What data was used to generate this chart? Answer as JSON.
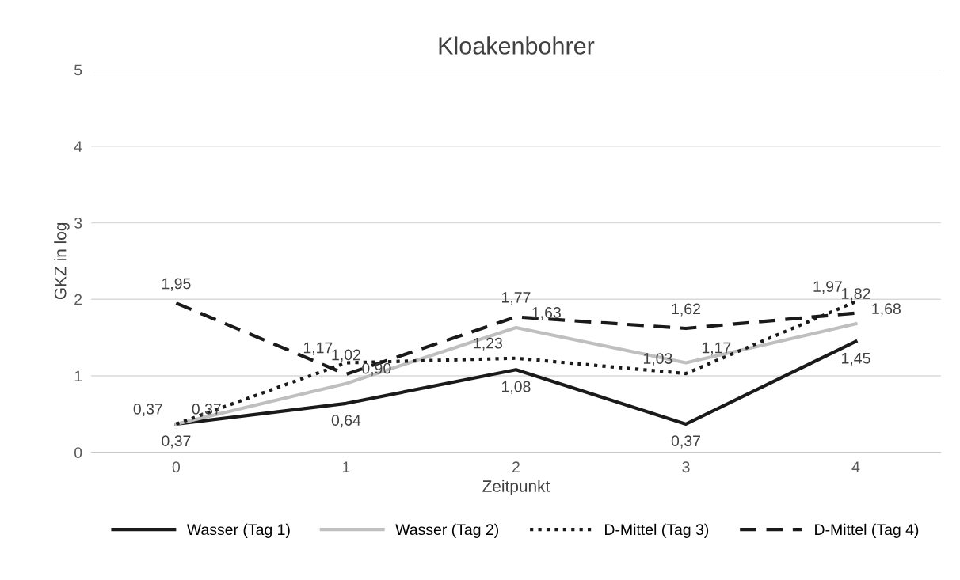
{
  "chart_data": {
    "type": "line",
    "title": "Kloakenbohrer",
    "xlabel": "Zeitpunkt",
    "ylabel": "GKZ in log",
    "categories": [
      "0",
      "1",
      "2",
      "3",
      "4"
    ],
    "series": [
      {
        "name": "Wasser (Tag 1)",
        "color": "#1a1a1a",
        "line_style": "solid",
        "values": [
          0.37,
          0.64,
          1.08,
          0.37,
          1.45
        ],
        "value_labels": [
          "0,37",
          "0,64",
          "1,08",
          "0,37",
          "1,45"
        ]
      },
      {
        "name": "Wasser (Tag 2)",
        "color": "#bfbfbf",
        "line_style": "solid",
        "values": [
          0.37,
          0.9,
          1.63,
          1.17,
          1.68
        ],
        "value_labels": [
          "0,37",
          "0,90",
          "1,63",
          "1,17",
          "1,68"
        ]
      },
      {
        "name": "D-Mittel (Tag 3)",
        "color": "#1a1a1a",
        "line_style": "dotted",
        "values": [
          0.37,
          1.17,
          1.23,
          1.03,
          1.97
        ],
        "value_labels": [
          "0,37",
          "1,17",
          "1,23",
          "1,03",
          "1,97"
        ]
      },
      {
        "name": "D-Mittel (Tag 4)",
        "color": "#1a1a1a",
        "line_style": "dashed",
        "values": [
          1.95,
          1.02,
          1.77,
          1.62,
          1.82
        ],
        "value_labels": [
          "1,95",
          "1,02",
          "1,77",
          "1,62",
          "1,82"
        ]
      }
    ],
    "ylim": [
      0,
      5
    ],
    "yticks": [
      0,
      1,
      2,
      3,
      4,
      5
    ],
    "grid": "y",
    "legend": "bottom",
    "marker": "none"
  }
}
